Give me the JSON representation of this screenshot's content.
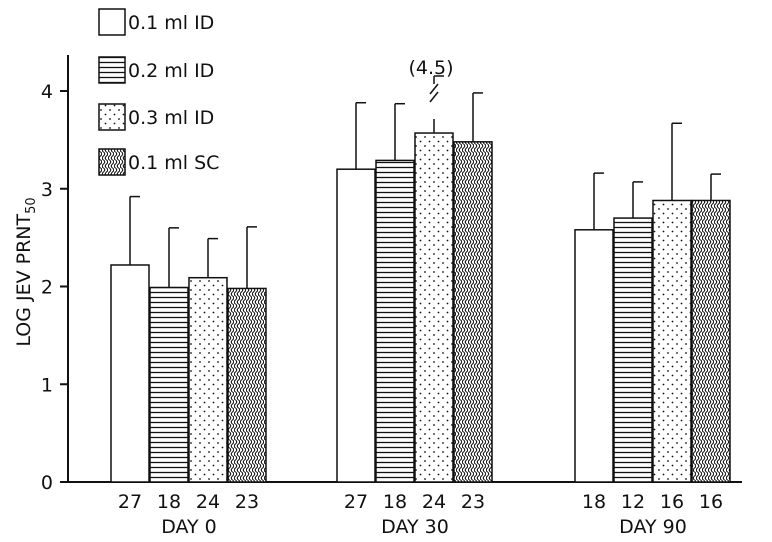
{
  "chart_data": {
    "type": "bar",
    "title": "",
    "xlabel": "",
    "ylabel": "LOG JEV PRNT",
    "ylabel_subscript": "50",
    "ylim": [
      0,
      4.3
    ],
    "yticks": [
      0,
      1,
      2,
      3,
      4
    ],
    "grid": false,
    "legend_position": "top-left",
    "groups": [
      "DAY 0",
      "DAY 30",
      "DAY 90"
    ],
    "series": [
      {
        "name": "0.1 ml ID",
        "pattern": "blank",
        "values": [
          2.22,
          3.2,
          2.58
        ],
        "error_upper": [
          2.92,
          3.88,
          3.16
        ],
        "n": [
          "27",
          "27",
          "18"
        ]
      },
      {
        "name": "0.2 ml ID",
        "pattern": "horizontal-lines",
        "values": [
          1.99,
          3.29,
          2.7
        ],
        "error_upper": [
          2.6,
          3.87,
          3.07
        ],
        "n": [
          "18",
          "18",
          "12"
        ]
      },
      {
        "name": "0.3 ml ID",
        "pattern": "dots",
        "values": [
          2.09,
          3.57,
          2.88
        ],
        "error_upper": [
          2.49,
          4.5,
          3.67
        ],
        "n": [
          "24",
          "24",
          "16"
        ]
      },
      {
        "name": "0.1 ml SC",
        "pattern": "wavy-lines",
        "values": [
          1.98,
          3.48,
          2.88
        ],
        "error_upper": [
          2.61,
          3.98,
          3.15
        ],
        "n": [
          "23",
          "23",
          "16"
        ]
      }
    ],
    "annotations": [
      {
        "text": "(4.5)",
        "group": "DAY 30",
        "series": "0.3 ml ID",
        "note": "axis break on error bar"
      }
    ],
    "colors": {
      "ink": "#111111",
      "fill": "#ffffff"
    }
  }
}
